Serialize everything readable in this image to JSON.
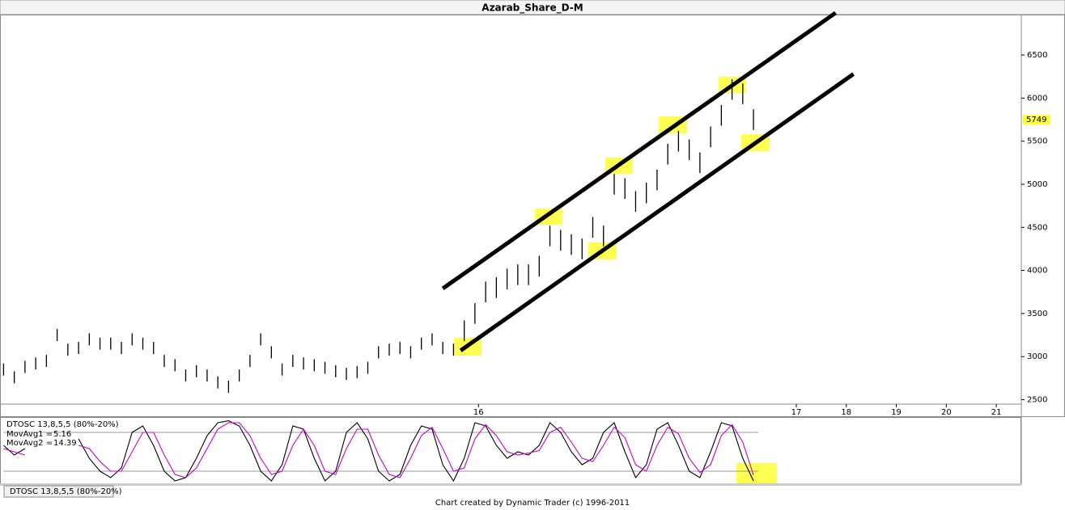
{
  "title": "Azarab_Share_D-M",
  "chart_data": [
    {
      "type": "ohlc",
      "x": [
        0,
        3,
        6,
        9,
        12,
        15,
        18,
        21,
        24,
        27,
        30,
        33,
        36,
        39,
        42,
        45,
        48,
        51,
        54,
        57,
        60,
        63,
        66,
        69,
        72,
        75,
        78,
        81,
        84,
        87,
        90,
        93,
        96,
        99,
        102,
        105,
        108,
        111,
        114,
        117,
        120,
        123,
        126,
        129,
        132,
        135,
        138,
        141,
        144,
        147,
        150,
        153,
        156,
        159,
        162,
        165,
        168,
        171,
        174,
        177,
        180,
        183,
        186,
        189,
        192,
        195,
        198,
        201,
        204,
        207,
        210
      ],
      "high": [
        2920,
        2830,
        2950,
        2990,
        3020,
        3320,
        3150,
        3170,
        3270,
        3220,
        3220,
        3170,
        3270,
        3220,
        3170,
        3020,
        2970,
        2850,
        2900,
        2850,
        2770,
        2720,
        2850,
        3020,
        3270,
        3120,
        2920,
        3020,
        2990,
        2970,
        2940,
        2900,
        2870,
        2890,
        2940,
        3120,
        3150,
        3170,
        3120,
        3220,
        3270,
        3170,
        3150,
        3420,
        3620,
        3870,
        3920,
        4020,
        4070,
        4070,
        4170,
        4520,
        4470,
        4420,
        4370,
        4620,
        4520,
        5120,
        5070,
        4920,
        5020,
        5170,
        5470,
        5620,
        5520,
        5370,
        5670,
        5920,
        6220,
        6170,
        5870
      ],
      "low": [
        2780,
        2690,
        2810,
        2850,
        2880,
        3180,
        3010,
        3030,
        3130,
        3080,
        3080,
        3030,
        3130,
        3080,
        3030,
        2880,
        2830,
        2710,
        2760,
        2710,
        2630,
        2580,
        2710,
        2880,
        3130,
        2980,
        2780,
        2880,
        2850,
        2830,
        2800,
        2760,
        2730,
        2750,
        2800,
        2980,
        3010,
        3030,
        2980,
        3080,
        3130,
        3030,
        3010,
        3180,
        3380,
        3630,
        3680,
        3780,
        3830,
        3830,
        3930,
        4280,
        4230,
        4180,
        4130,
        4380,
        4280,
        4880,
        4830,
        4680,
        4780,
        4930,
        5230,
        5380,
        5280,
        5130,
        5430,
        5680,
        5980,
        5930,
        5630
      ],
      "color": "#000000",
      "last_price": 5749,
      "trendlines": [
        {
          "x": [
            123,
            233
          ],
          "y": [
            3790,
            6990
          ]
        },
        {
          "x": [
            128,
            238
          ],
          "y": [
            3070,
            6280
          ]
        }
      ],
      "xlim": [
        -1,
        285
      ],
      "xticks": [
        {
          "value": 133,
          "label": "16"
        },
        {
          "value": 222,
          "label": "17"
        },
        {
          "value": 236,
          "label": "18"
        },
        {
          "value": 250,
          "label": "19"
        },
        {
          "value": 264,
          "label": "20"
        },
        {
          "value": 278,
          "label": "21"
        }
      ],
      "ylim": [
        2420,
        6970
      ],
      "yticks": [
        2500,
        3000,
        3500,
        4000,
        4500,
        5000,
        5500,
        6000,
        6500
      ]
    },
    {
      "type": "line",
      "title": "DTOSC 13,8,5,5 (80%-20%)",
      "x": [
        0,
        3,
        6,
        9,
        12,
        15,
        18,
        21,
        24,
        27,
        30,
        33,
        36,
        39,
        42,
        45,
        48,
        51,
        54,
        57,
        60,
        63,
        66,
        69,
        72,
        75,
        78,
        81,
        84,
        87,
        90,
        93,
        96,
        99,
        102,
        105,
        108,
        111,
        114,
        117,
        120,
        123,
        126,
        129,
        132,
        135,
        138,
        141,
        144,
        147,
        150,
        153,
        156,
        159,
        162,
        165,
        168,
        171,
        174,
        177,
        180,
        183,
        186,
        189,
        192,
        195,
        198,
        201,
        204,
        207,
        210
      ],
      "series": [
        {
          "name": "MovAvg1 =",
          "last": 5.16,
          "color": "#000000",
          "values": [
            60,
            45,
            55,
            null,
            null,
            null,
            null,
            70,
            40,
            20,
            10,
            25,
            80,
            90,
            60,
            20,
            5,
            10,
            40,
            75,
            95,
            98,
            90,
            60,
            20,
            5,
            30,
            90,
            85,
            40,
            5,
            20,
            80,
            95,
            70,
            20,
            5,
            15,
            60,
            90,
            85,
            30,
            5,
            40,
            95,
            90,
            60,
            40,
            50,
            45,
            60,
            95,
            80,
            50,
            30,
            40,
            80,
            95,
            50,
            10,
            30,
            85,
            95,
            60,
            20,
            10,
            50,
            95,
            90,
            40,
            5
          ]
        },
        {
          "name": "MovAvg2 =",
          "last": 14.39,
          "color": "#cc00cc",
          "values": [
            55,
            50,
            45,
            null,
            null,
            null,
            null,
            60,
            55,
            35,
            20,
            20,
            50,
            80,
            80,
            45,
            15,
            10,
            25,
            55,
            85,
            95,
            95,
            75,
            40,
            15,
            20,
            60,
            85,
            60,
            20,
            15,
            55,
            85,
            85,
            45,
            15,
            10,
            40,
            75,
            88,
            55,
            20,
            25,
            70,
            92,
            75,
            50,
            45,
            48,
            52,
            80,
            88,
            65,
            40,
            35,
            60,
            88,
            72,
            30,
            20,
            60,
            88,
            78,
            40,
            18,
            30,
            75,
            92,
            65,
            14
          ]
        }
      ],
      "levels": [
        80,
        20
      ],
      "xlim": [
        -1,
        285
      ],
      "ylim": [
        0,
        100
      ]
    }
  ],
  "tab": "DTOSC 13,8,5,5 (80%-20%)",
  "footer": "Chart created by Dynamic Trader  (c) 1996-2011"
}
